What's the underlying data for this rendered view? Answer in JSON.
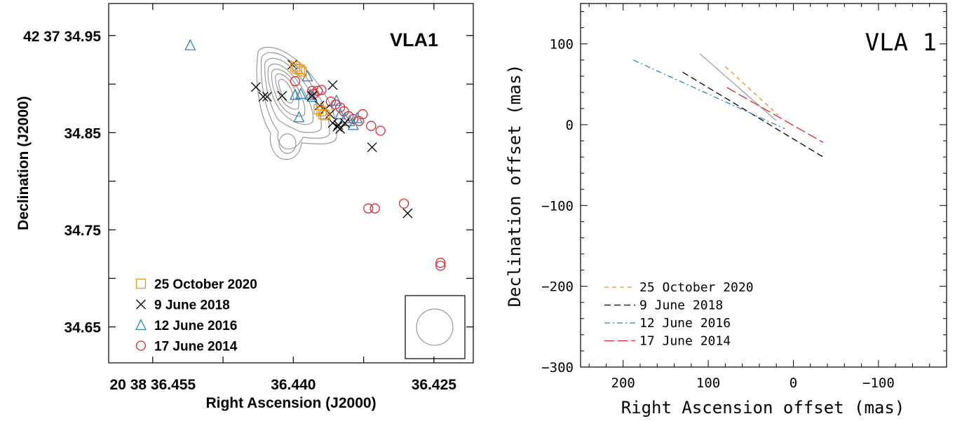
{
  "chart_data": [
    {
      "type": "scatter",
      "title": "VLA1",
      "xlabel": "Right Ascension (J2000)",
      "ylabel": "Declination (J2000)",
      "x_ticks": [
        {
          "value": 36.455,
          "label": "20 38 36.455"
        },
        {
          "value": 36.44,
          "label": "36.440"
        },
        {
          "value": 36.425,
          "label": "36.425"
        }
      ],
      "y_ticks": [
        {
          "value": 34.95,
          "label": "42 37 34.95"
        },
        {
          "value": 34.85,
          "label": "34.85"
        },
        {
          "value": 34.75,
          "label": "34.75"
        },
        {
          "value": 34.65,
          "label": "34.65"
        }
      ],
      "xlim": [
        36.4597,
        36.4208
      ],
      "ylim": [
        34.613,
        34.983
      ],
      "legend_position": "bottom-left",
      "series": [
        {
          "name": "25 October 2020",
          "marker": "square",
          "color": "#e8961e",
          "points": [
            [
              36.4398,
              34.918
            ],
            [
              36.4396,
              34.916
            ],
            [
              36.4393,
              34.915
            ],
            [
              36.4391,
              34.913
            ],
            [
              36.4373,
              34.874
            ],
            [
              36.437,
              34.872
            ],
            [
              36.4368,
              34.869
            ],
            [
              36.4366,
              34.868
            ]
          ]
        },
        {
          "name": "9 June 2018",
          "marker": "x",
          "color": "#000000",
          "points": [
            [
              36.4401,
              34.92
            ],
            [
              36.444,
              34.897
            ],
            [
              36.4432,
              34.887
            ],
            [
              36.4428,
              34.887
            ],
            [
              36.4412,
              34.888
            ],
            [
              36.438,
              34.888
            ],
            [
              36.4358,
              34.899
            ],
            [
              36.4372,
              34.878
            ],
            [
              36.4366,
              34.874
            ],
            [
              36.4361,
              34.869
            ],
            [
              36.4358,
              34.86
            ],
            [
              36.4353,
              34.856
            ],
            [
              36.435,
              34.854
            ],
            [
              36.4352,
              34.858
            ],
            [
              36.4345,
              34.86
            ],
            [
              36.4316,
              34.835
            ],
            [
              36.4278,
              34.767
            ]
          ]
        },
        {
          "name": "12 June 2016",
          "marker": "triangle",
          "color": "#2d82b7",
          "points": [
            [
              36.451,
              34.94
            ],
            [
              36.4398,
              34.889
            ],
            [
              36.4392,
              34.89
            ],
            [
              36.4382,
              34.889
            ],
            [
              36.438,
              34.887
            ],
            [
              36.4385,
              34.908
            ],
            [
              36.4394,
              34.866
            ],
            [
              36.4354,
              34.883
            ],
            [
              36.435,
              34.869
            ],
            [
              36.4345,
              34.865
            ],
            [
              36.434,
              34.862
            ],
            [
              36.4336,
              34.858
            ],
            [
              36.4332,
              34.865
            ]
          ]
        },
        {
          "name": "17 June 2014",
          "marker": "circle",
          "color": "#e2272a",
          "points": [
            [
              36.4398,
              34.903
            ],
            [
              36.438,
              34.893
            ],
            [
              36.4378,
              34.89
            ],
            [
              36.4374,
              34.893
            ],
            [
              36.437,
              34.894
            ],
            [
              36.436,
              34.882
            ],
            [
              36.4355,
              34.879
            ],
            [
              36.435,
              34.876
            ],
            [
              36.4346,
              34.872
            ],
            [
              36.4341,
              34.867
            ],
            [
              36.4336,
              34.864
            ],
            [
              36.433,
              34.862
            ],
            [
              36.4326,
              34.869
            ],
            [
              36.4317,
              34.857
            ],
            [
              36.4307,
              34.852
            ],
            [
              36.432,
              34.772
            ],
            [
              36.4313,
              34.772
            ],
            [
              36.4282,
              34.777
            ],
            [
              36.4243,
              34.716
            ],
            [
              36.4243,
              34.713
            ]
          ]
        }
      ]
    },
    {
      "type": "line",
      "title": "VLA 1",
      "xlabel": "Right Ascension offset (mas)",
      "ylabel": "Declination offset (mas)",
      "x_ticks": [
        200,
        100,
        0,
        -100
      ],
      "x_tick_labels": [
        "200",
        "100",
        "0",
        "−100"
      ],
      "y_ticks": [
        100,
        0,
        -100,
        -200,
        -300
      ],
      "y_tick_labels": [
        "100",
        "0",
        "−100",
        "−200",
        "−300"
      ],
      "xlim": [
        250,
        -180
      ],
      "ylim": [
        -300,
        150
      ],
      "legend_position": "bottom-left",
      "series": [
        {
          "name": "",
          "color": "#a0a0a0",
          "dash": "solid",
          "points": [
            [
              110,
              88
            ],
            [
              20,
              5
            ]
          ]
        },
        {
          "name": "25 October 2020",
          "color": "#e8961e",
          "dash": "6,5",
          "points": [
            [
              80,
              72
            ],
            [
              18,
              12
            ]
          ]
        },
        {
          "name": "9 June 2018",
          "color": "#000000",
          "dash": "9,5",
          "points": [
            [
              130,
              65
            ],
            [
              -35,
              -40
            ]
          ]
        },
        {
          "name": "12 June 2016",
          "color": "#2d82b7",
          "dash": "8,4,2,4",
          "points": [
            [
              188,
              80
            ],
            [
              10,
              -5
            ]
          ]
        },
        {
          "name": "17 June 2014",
          "color": "#e2272a",
          "dash": "14,5",
          "points": [
            [
              78,
              46
            ],
            [
              -35,
              -22
            ]
          ]
        }
      ]
    }
  ]
}
